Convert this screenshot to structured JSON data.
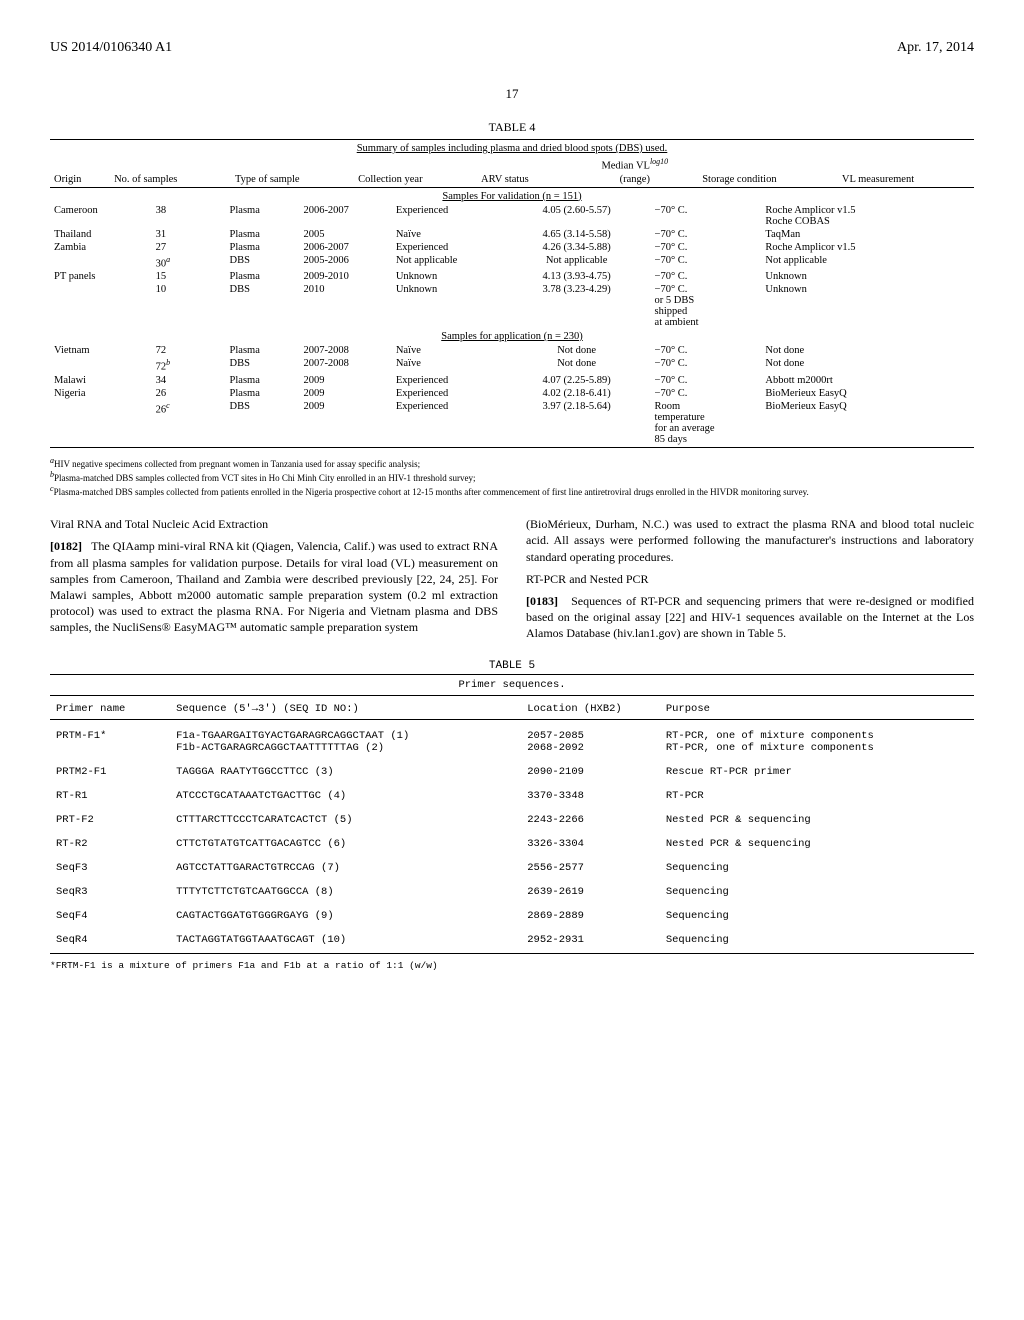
{
  "header": {
    "left": "US 2014/0106340 A1",
    "right": "Apr. 17, 2014"
  },
  "page_number": "17",
  "table4": {
    "label": "TABLE 4",
    "title": "Summary of samples including plasma and dried blood spots (DBS) used.",
    "columns": [
      "Origin",
      "No. of samples",
      "Type of sample",
      "Collection year",
      "ARV status",
      "Median VL",
      "Storage condition",
      "VL measurement"
    ],
    "median_header_sub": "log10",
    "median_header_range": "(range)",
    "section1": "Samples For validation (n = 151)",
    "section2": "Samples for application (n = 230)",
    "rows1": [
      {
        "origin": "Cameroon",
        "n": "38",
        "type": "Plasma",
        "year": "2006-2007",
        "arv": "Experienced",
        "median": "4.05 (2.60-5.57)",
        "storage": "−70° C.",
        "vl": "Roche Amplicor v1.5\nRoche COBAS"
      },
      {
        "origin": "Thailand",
        "n": "31",
        "type": "Plasma",
        "year": "2005",
        "arv": "Naïve",
        "median": "4.65 (3.14-5.58)",
        "storage": "−70° C.",
        "vl": "TaqMan"
      },
      {
        "origin": "Zambia",
        "n": "27",
        "type": "Plasma",
        "year": "2006-2007",
        "arv": "Experienced",
        "median": "4.26 (3.34-5.88)",
        "storage": "−70° C.",
        "vl": "Roche Amplicor v1.5"
      },
      {
        "origin": "",
        "n": "30",
        "n_sup": "a",
        "type": "DBS",
        "year": "2005-2006",
        "arv": "Not applicable",
        "median": "Not applicable",
        "storage": "−70° C.",
        "vl": "Not applicable"
      },
      {
        "origin": "PT panels",
        "n": "15",
        "type": "Plasma",
        "year": "2009-2010",
        "arv": "Unknown",
        "median": "4.13 (3.93-4.75)",
        "storage": "−70° C.",
        "vl": "Unknown"
      },
      {
        "origin": "",
        "n": "10",
        "type": "DBS",
        "year": "2010",
        "arv": "Unknown",
        "median": "3.78 (3.23-4.29)",
        "storage": "−70° C.\nor 5 DBS\nshipped\nat ambient",
        "vl": "Unknown"
      }
    ],
    "rows2": [
      {
        "origin": "Vietnam",
        "n": "72",
        "type": "Plasma",
        "year": "2007-2008",
        "arv": "Naïve",
        "median": "Not done",
        "storage": "−70° C.",
        "vl": "Not done"
      },
      {
        "origin": "",
        "n": "72",
        "n_sup": "b",
        "type": "DBS",
        "year": "2007-2008",
        "arv": "Naïve",
        "median": "Not done",
        "storage": "−70° C.",
        "vl": "Not done"
      },
      {
        "origin": "Malawi",
        "n": "34",
        "type": "Plasma",
        "year": "2009",
        "arv": "Experienced",
        "median": "4.07 (2.25-5.89)",
        "storage": "−70° C.",
        "vl": "Abbott m2000rt"
      },
      {
        "origin": "Nigeria",
        "n": "26",
        "type": "Plasma",
        "year": "2009",
        "arv": "Experienced",
        "median": "4.02 (2.18-6.41)",
        "storage": "−70° C.",
        "vl": "BioMerieux EasyQ"
      },
      {
        "origin": "",
        "n": "26",
        "n_sup": "c",
        "type": "DBS",
        "year": "2009",
        "arv": "Experienced",
        "median": "3.97 (2.18-5.64)",
        "storage": "Room\ntemperature\nfor an average\n85 days",
        "vl": "BioMerieux EasyQ"
      }
    ],
    "footnotes": {
      "a": "HIV negative specimens collected from pregnant women in Tanzania used for assay specific analysis;",
      "b": "Plasma-matched DBS samples collected from VCT sites in Ho Chi Minh City enrolled in an HIV-1 threshold survey;",
      "c": "Plasma-matched DBS samples collected from patients enrolled in the Nigeria prospective cohort at 12-15 months after commencement of first line antiretroviral drugs enrolled in the HIVDR monitoring survey."
    }
  },
  "body": {
    "left_heading": "Viral RNA and Total Nucleic Acid Extraction",
    "p0182_num": "[0182]",
    "p0182": "The QIAamp mini-viral RNA kit (Qiagen, Valencia, Calif.) was used to extract RNA from all plasma samples for validation purpose. Details for viral load (VL) measurement on samples from Cameroon, Thailand and Zambia were described previously [22, 24, 25]. For Malawi samples, Abbott m2000 automatic sample preparation system (0.2 ml extraction protocol) was used to extract the plasma RNA. For Nigeria and Vietnam plasma and DBS samples, the NucliSens® EasyMAG™ automatic sample preparation system",
    "right_top": "(BioMérieux, Durham, N.C.) was used to extract the plasma RNA and blood total nucleic acid. All assays were performed following the manufacturer's instructions and laboratory standard operating procedures.",
    "right_heading": "RT-PCR and Nested PCR",
    "p0183_num": "[0183]",
    "p0183": "Sequences of RT-PCR and sequencing primers that were re-designed or modified based on the original assay [22] and HIV-1 sequences available on the Internet at the Los Alamos Database (hiv.lan1.gov) are shown in Table 5."
  },
  "table5": {
    "label": "TABLE 5",
    "title": "Primer sequences.",
    "columns": [
      "Primer name",
      "Sequence (5'→3') (SEQ ID NO:)",
      "Location (HXB2)",
      "Purpose"
    ],
    "rows": [
      {
        "name": "PRTM-F1*",
        "seq": "F1a-TGAARGAITGYACTGARAGRCAGGCTAAT (1)\nF1b-ACTGARAGRCAGGCTAATTTTTTAG (2)",
        "loc": "2057-2085\n2068-2092",
        "purpose": "RT-PCR, one of mixture components\nRT-PCR, one of mixture components"
      },
      {
        "name": "PRTM2-F1",
        "seq": "TAGGGA RAATYTGGCCTTCC (3)",
        "loc": "2090-2109",
        "purpose": "Rescue RT-PCR primer"
      },
      {
        "name": "RT-R1",
        "seq": "ATCCCTGCATAAATCTGACTTGC (4)",
        "loc": "3370-3348",
        "purpose": "RT-PCR"
      },
      {
        "name": "PRT-F2",
        "seq": "CTTTARCTTCCCTCARATCACTCT (5)",
        "loc": "2243-2266",
        "purpose": "Nested PCR & sequencing"
      },
      {
        "name": "RT-R2",
        "seq": "CTTCTGTATGTCATTGACAGTCC (6)",
        "loc": "3326-3304",
        "purpose": "Nested PCR & sequencing"
      },
      {
        "name": "SeqF3",
        "seq": "AGTCCTATTGARACTGTRCCAG (7)",
        "loc": "2556-2577",
        "purpose": "Sequencing"
      },
      {
        "name": "SeqR3",
        "seq": "TTTYTCTTCTGTCAATGGCCA (8)",
        "loc": "2639-2619",
        "purpose": "Sequencing"
      },
      {
        "name": "SeqF4",
        "seq": "CAGTACTGGATGTGGGRGAYG (9)",
        "loc": "2869-2889",
        "purpose": "Sequencing"
      },
      {
        "name": "SeqR4",
        "seq": "TACTAGGTATGGTAAATGCAGT (10)",
        "loc": "2952-2931",
        "purpose": "Sequencing"
      }
    ],
    "footnote": "*FRTM-F1 is a mixture of primers F1a and F1b at a ratio of 1:1 (w/w)"
  }
}
